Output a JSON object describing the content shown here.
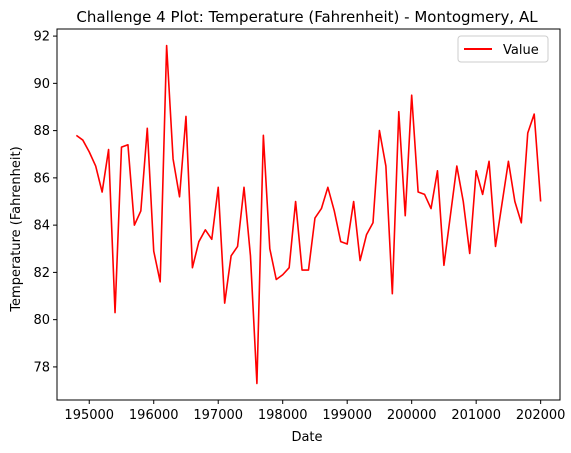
{
  "chart_data": {
    "type": "line",
    "title": "Challenge 4 Plot: Temperature (Fahrenheit) - Montogmery, AL",
    "xlabel": "Date",
    "ylabel": "Temperature (Fahrenheit)",
    "xlim": [
      194500,
      202300
    ],
    "ylim": [
      76.6,
      92.3
    ],
    "xticks": [
      195000,
      196000,
      197000,
      198000,
      199000,
      200000,
      201000,
      202000
    ],
    "yticks": [
      78,
      80,
      82,
      84,
      86,
      88,
      90,
      92
    ],
    "grid": false,
    "legend_position": "top-right",
    "series": [
      {
        "name": "Value",
        "color": "#ff0000",
        "x": [
          194800,
          194900,
          195000,
          195100,
          195200,
          195300,
          195400,
          195500,
          195600,
          195700,
          195800,
          195900,
          196000,
          196100,
          196200,
          196300,
          196400,
          196500,
          196600,
          196700,
          196800,
          196900,
          197000,
          197100,
          197200,
          197300,
          197400,
          197500,
          197600,
          197700,
          197800,
          197900,
          198000,
          198100,
          198200,
          198300,
          198400,
          198500,
          198600,
          198700,
          198800,
          198900,
          199000,
          199100,
          199200,
          199300,
          199400,
          199500,
          199600,
          199700,
          199800,
          199900,
          200000,
          200100,
          200200,
          200300,
          200400,
          200500,
          200600,
          200700,
          200800,
          200900,
          201000,
          201100,
          201200,
          201300,
          201400,
          201500,
          201600,
          201700,
          201800,
          201900,
          202000
        ],
        "y": [
          87.8,
          87.6,
          87.1,
          86.5,
          85.4,
          87.2,
          80.3,
          87.3,
          87.4,
          84.0,
          84.6,
          88.1,
          82.9,
          81.6,
          91.6,
          86.8,
          85.2,
          88.6,
          82.2,
          83.3,
          83.8,
          83.4,
          85.6,
          80.7,
          82.7,
          83.1,
          85.6,
          82.7,
          77.3,
          87.8,
          83.0,
          81.7,
          81.9,
          82.2,
          85.0,
          82.1,
          82.1,
          84.3,
          84.7,
          85.6,
          84.6,
          83.3,
          83.2,
          85.0,
          82.5,
          83.6,
          84.1,
          88.0,
          86.5,
          81.1,
          88.8,
          84.4,
          89.5,
          85.4,
          85.3,
          84.7,
          86.3,
          82.3,
          84.4,
          86.5,
          85.0,
          82.8,
          86.3,
          85.3,
          86.7,
          83.1,
          84.9,
          86.7,
          85.0,
          84.1,
          87.9,
          88.7,
          85.0
        ]
      }
    ]
  }
}
